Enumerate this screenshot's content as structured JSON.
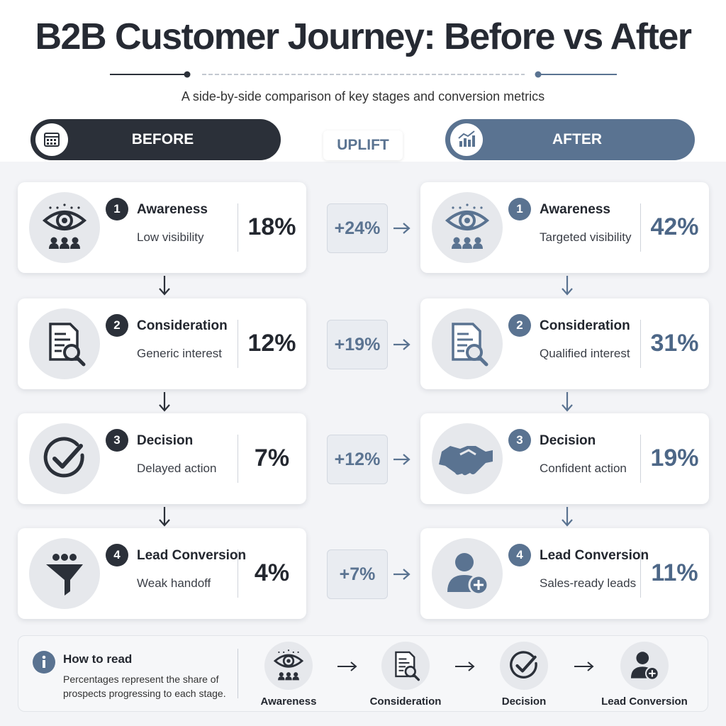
{
  "header": {
    "title": "B2B Customer Journey: Before vs After",
    "subtitle": "A side-by-side comparison of key stages and conversion metrics"
  },
  "columns": {
    "before": "BEFORE",
    "uplift": "UPLIFT",
    "after": "AFTER"
  },
  "stages": [
    {
      "number": 1,
      "name": "Awareness",
      "before_note": "Low visibility",
      "before_value": "18%",
      "uplift": "+24%",
      "after_note": "Targeted visibility",
      "after_value": "42%"
    },
    {
      "number": 2,
      "name": "Consideration",
      "before_note": "Generic interest",
      "before_value": "12%",
      "uplift": "+19%",
      "after_note": "Qualified interest",
      "after_value": "31%"
    },
    {
      "number": 3,
      "name": "Decision",
      "before_note": "Delayed action",
      "before_value": "7%",
      "uplift": "+12%",
      "after_note": "Confident action",
      "after_value": "19%"
    },
    {
      "number": 4,
      "name": "Lead Conversion",
      "before_note": "Weak handoff",
      "before_value": "4%",
      "uplift": "+7%",
      "after_note": "Sales-ready leads",
      "after_value": "11%"
    }
  ],
  "legend": {
    "title": "How to read",
    "text": "Percentages represent the share of prospects progressing to each stage."
  }
}
